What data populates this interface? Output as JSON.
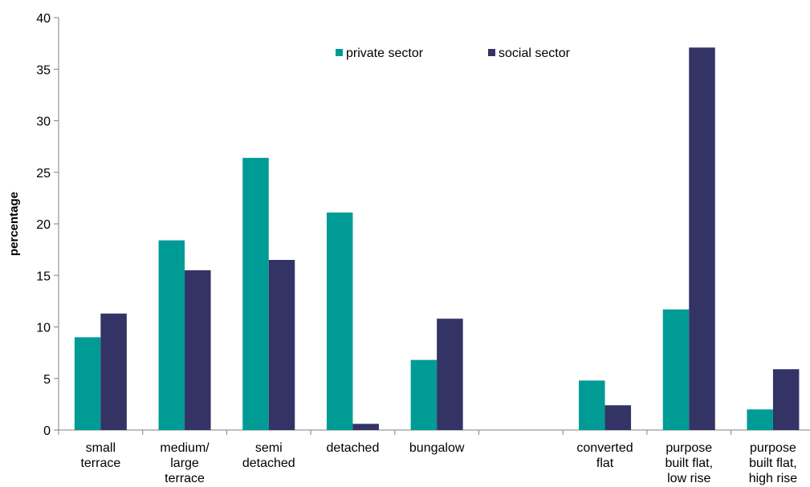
{
  "chart_data": {
    "type": "bar",
    "title": "",
    "xlabel": "",
    "ylabel": "percentage",
    "ylim": [
      0,
      40
    ],
    "yticks": [
      0,
      5,
      10,
      15,
      20,
      25,
      30,
      35,
      40
    ],
    "grid": false,
    "legend_position": "top-center",
    "categories": [
      [
        "small",
        "terrace"
      ],
      [
        "medium/",
        "large",
        "terrace"
      ],
      [
        "semi",
        "detached"
      ],
      [
        "detached"
      ],
      [
        "bungalow"
      ],
      [
        ""
      ],
      [
        "converted",
        "flat"
      ],
      [
        "purpose",
        "built flat,",
        "low rise"
      ],
      [
        "purpose",
        "built flat,",
        "high rise"
      ]
    ],
    "series": [
      {
        "name": "private sector",
        "color": "#009B95",
        "values": [
          9.0,
          18.4,
          26.4,
          21.1,
          6.8,
          null,
          4.8,
          11.7,
          2.0
        ]
      },
      {
        "name": "social sector",
        "color": "#333366",
        "values": [
          11.3,
          15.5,
          16.5,
          0.6,
          10.8,
          null,
          2.4,
          37.1,
          5.9
        ]
      }
    ]
  }
}
